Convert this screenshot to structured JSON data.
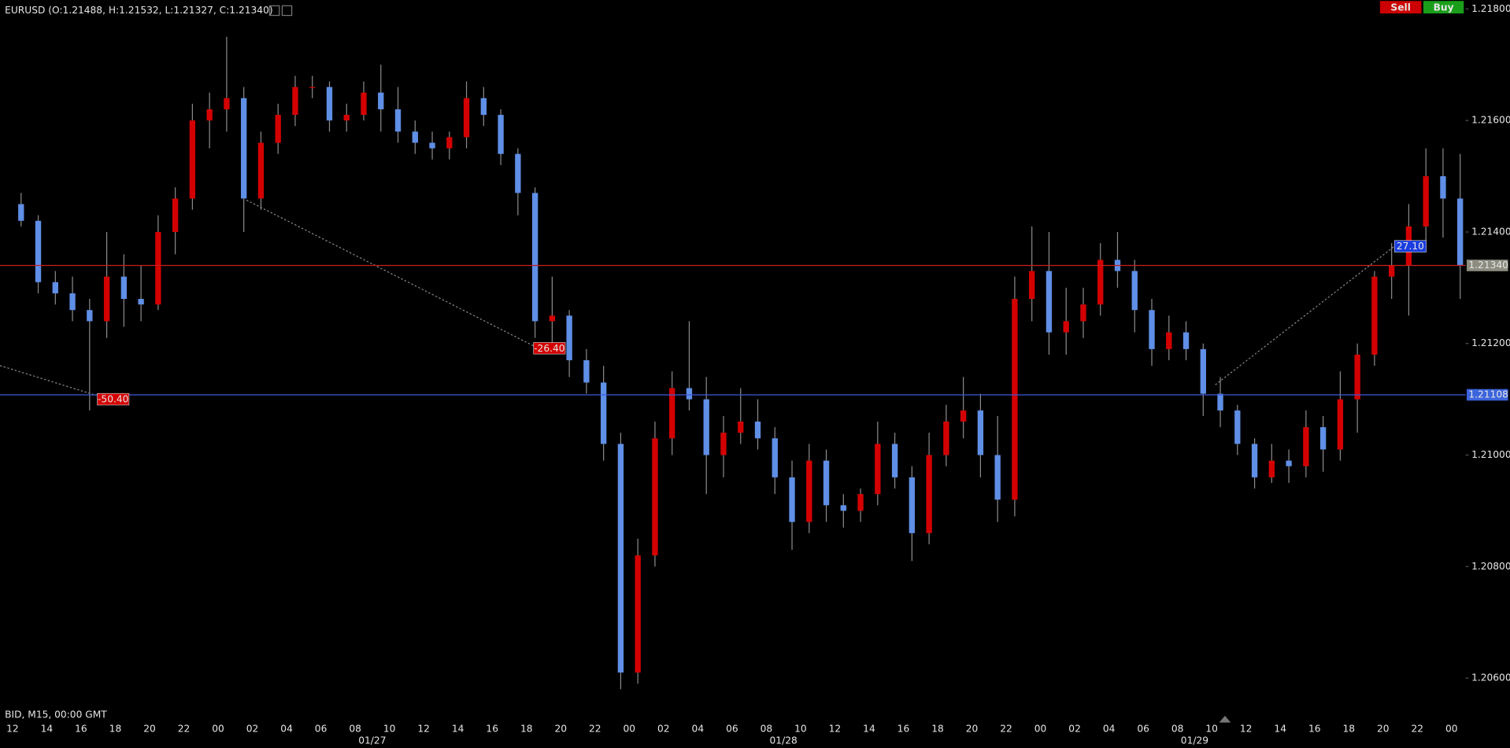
{
  "header": {
    "symbol_info": "EURUSD (O:1.21488, H:1.21532, L:1.21327, C:1.21340)",
    "sell": "Sell",
    "buy": "Buy"
  },
  "footer_info": "BID, M15, 00:00 GMT",
  "chart_data": {
    "type": "candlestick",
    "up_color": "#d40000",
    "down_color": "#5f8fe6",
    "wick_color": "#8a8a8a",
    "x": [
      "01/26 12:00",
      "01/26 13:00",
      "01/26 14:00",
      "01/26 15:00",
      "01/26 16:00",
      "01/26 17:00",
      "01/26 18:00",
      "01/26 19:00",
      "01/26 20:00",
      "01/26 21:00",
      "01/26 22:00",
      "01/26 23:00",
      "01/27 00:00",
      "01/27 01:00",
      "01/27 02:00",
      "01/27 03:00",
      "01/27 04:00",
      "01/27 05:00",
      "01/27 06:00",
      "01/27 07:00",
      "01/27 08:00",
      "01/27 09:00",
      "01/27 10:00",
      "01/27 11:00",
      "01/27 12:00",
      "01/27 13:00",
      "01/27 14:00",
      "01/27 15:00",
      "01/27 16:00",
      "01/27 17:00",
      "01/27 18:00",
      "01/27 19:00",
      "01/27 20:00",
      "01/27 21:00",
      "01/27 22:00",
      "01/27 23:00",
      "01/28 00:00",
      "01/28 01:00",
      "01/28 02:00",
      "01/28 03:00",
      "01/28 04:00",
      "01/28 05:00",
      "01/28 06:00",
      "01/28 07:00",
      "01/28 08:00",
      "01/28 09:00",
      "01/28 10:00",
      "01/28 11:00",
      "01/28 12:00",
      "01/28 13:00",
      "01/28 14:00",
      "01/28 15:00",
      "01/28 16:00",
      "01/28 17:00",
      "01/28 18:00",
      "01/28 19:00",
      "01/28 20:00",
      "01/28 21:00",
      "01/28 22:00",
      "01/28 23:00",
      "01/29 00:00",
      "01/29 01:00",
      "01/29 02:00",
      "01/29 03:00",
      "01/29 04:00",
      "01/29 05:00",
      "01/29 06:00",
      "01/29 07:00",
      "01/29 08:00",
      "01/29 09:00",
      "01/29 10:00",
      "01/29 11:00",
      "01/29 12:00",
      "01/29 13:00",
      "01/29 14:00",
      "01/29 15:00",
      "01/29 16:00",
      "01/29 17:00",
      "01/29 18:00",
      "01/29 19:00",
      "01/29 20:00",
      "01/29 21:00",
      "01/29 22:00",
      "01/29 23:00",
      "01/30 00:00"
    ],
    "open": [
      1.2145,
      1.2142,
      1.2131,
      1.2129,
      1.2126,
      1.2124,
      1.2132,
      1.2128,
      1.2127,
      1.214,
      1.2146,
      1.216,
      1.2162,
      1.2164,
      1.2146,
      1.2156,
      1.2161,
      1.2166,
      1.2166,
      1.216,
      1.2161,
      1.2165,
      1.2162,
      1.2158,
      1.2156,
      1.2155,
      1.2157,
      1.2164,
      1.2161,
      1.2154,
      1.2147,
      1.2124,
      1.2125,
      1.2117,
      1.2113,
      1.2102,
      1.2061,
      1.2082,
      1.2103,
      1.2112,
      1.211,
      1.21,
      1.2104,
      1.2106,
      1.2103,
      1.2096,
      1.2088,
      1.2099,
      1.2091,
      1.209,
      1.2093,
      1.2102,
      1.2096,
      1.2086,
      1.21,
      1.2106,
      1.2108,
      1.21,
      1.2092,
      1.2128,
      1.2133,
      1.2122,
      1.2124,
      1.2127,
      1.2135,
      1.2133,
      1.2126,
      1.2119,
      1.2122,
      1.2119,
      1.2111,
      1.2108,
      1.2102,
      1.2096,
      1.2099,
      1.2098,
      1.2105,
      1.2101,
      1.211,
      1.2118,
      1.2132,
      1.2134,
      1.2141,
      1.215,
      1.2146
    ],
    "high": [
      1.2147,
      1.2143,
      1.2133,
      1.2132,
      1.2128,
      1.214,
      1.2136,
      1.2134,
      1.2143,
      1.2148,
      1.2163,
      1.2165,
      1.2175,
      1.2166,
      1.2158,
      1.2163,
      1.2168,
      1.2168,
      1.2167,
      1.2163,
      1.2167,
      1.217,
      1.2166,
      1.216,
      1.2158,
      1.2158,
      1.2167,
      1.2166,
      1.2162,
      1.2155,
      1.2148,
      1.2132,
      1.2126,
      1.2119,
      1.2116,
      1.2104,
      1.2085,
      1.2106,
      1.2115,
      1.2124,
      1.2114,
      1.2107,
      1.2112,
      1.211,
      1.2105,
      1.2099,
      1.2102,
      1.2101,
      1.2093,
      1.2094,
      1.2106,
      1.2104,
      1.2098,
      1.2104,
      1.2109,
      1.2114,
      1.2111,
      1.2107,
      1.2132,
      1.2141,
      1.214,
      1.213,
      1.213,
      1.2138,
      1.214,
      1.2135,
      1.2128,
      1.2125,
      1.2124,
      1.212,
      1.2114,
      1.2109,
      1.2103,
      1.2102,
      1.2101,
      1.2108,
      1.2107,
      1.2115,
      1.212,
      1.2133,
      1.2138,
      1.2145,
      1.2155,
      1.2155,
      1.2154
    ],
    "low": [
      1.2141,
      1.2129,
      1.2127,
      1.2124,
      1.2108,
      1.2121,
      1.2123,
      1.2124,
      1.2126,
      1.2136,
      1.2144,
      1.2155,
      1.2158,
      1.214,
      1.2144,
      1.2154,
      1.2159,
      1.2164,
      1.2158,
      1.2158,
      1.216,
      1.2158,
      1.2156,
      1.2154,
      1.2153,
      1.2153,
      1.2155,
      1.2159,
      1.2152,
      1.2143,
      1.2121,
      1.212,
      1.2114,
      1.2111,
      1.2099,
      1.2058,
      1.2059,
      1.208,
      1.21,
      1.2108,
      1.2093,
      1.2096,
      1.2102,
      1.2101,
      1.2093,
      1.2083,
      1.2086,
      1.2088,
      1.2087,
      1.2088,
      1.2091,
      1.2094,
      1.2081,
      1.2084,
      1.2098,
      1.2103,
      1.2096,
      1.2088,
      1.2089,
      1.2124,
      1.2118,
      1.2118,
      1.2121,
      1.2125,
      1.213,
      1.2122,
      1.2116,
      1.2117,
      1.2117,
      1.2107,
      1.2105,
      1.21,
      1.2094,
      1.2095,
      1.2095,
      1.2096,
      1.2097,
      1.2099,
      1.2104,
      1.2116,
      1.2128,
      1.2125,
      1.2138,
      1.2139,
      1.2128
    ],
    "close": [
      1.2142,
      1.2131,
      1.2129,
      1.2126,
      1.2124,
      1.2132,
      1.2128,
      1.2127,
      1.214,
      1.2146,
      1.216,
      1.2162,
      1.2164,
      1.2146,
      1.2156,
      1.2161,
      1.2166,
      1.2166,
      1.216,
      1.2161,
      1.2165,
      1.2162,
      1.2158,
      1.2156,
      1.2155,
      1.2157,
      1.2164,
      1.2161,
      1.2154,
      1.2147,
      1.2124,
      1.2125,
      1.2117,
      1.2113,
      1.2102,
      1.2061,
      1.2082,
      1.2103,
      1.2112,
      1.211,
      1.21,
      1.2104,
      1.2106,
      1.2103,
      1.2096,
      1.2088,
      1.2099,
      1.2091,
      1.209,
      1.2093,
      1.2102,
      1.2096,
      1.2086,
      1.21,
      1.2106,
      1.2108,
      1.21,
      1.2092,
      1.2128,
      1.2133,
      1.2122,
      1.2124,
      1.2127,
      1.2135,
      1.2133,
      1.2126,
      1.2119,
      1.2122,
      1.2119,
      1.2111,
      1.2108,
      1.2102,
      1.2096,
      1.2099,
      1.2098,
      1.2105,
      1.2101,
      1.211,
      1.2118,
      1.2132,
      1.2134,
      1.2141,
      1.215,
      1.2146,
      1.2134
    ],
    "ylim": [
      1.20548,
      1.21816
    ],
    "yticks": [
      {
        "value": 1.206,
        "label": "1.20600"
      },
      {
        "value": 1.208,
        "label": "1.20800"
      },
      {
        "value": 1.21,
        "label": "1.21000"
      },
      {
        "value": 1.212,
        "label": "1.21200"
      },
      {
        "value": 1.214,
        "label": "1.21400"
      },
      {
        "value": 1.216,
        "label": "1.21600"
      },
      {
        "value": 1.218,
        "label": "1.21800"
      }
    ],
    "xticks": [
      {
        "value": "01/26 12:00",
        "label": "12"
      },
      {
        "value": "01/26 14:00",
        "label": "14"
      },
      {
        "value": "01/26 16:00",
        "label": "16"
      },
      {
        "value": "01/26 18:00",
        "label": "18"
      },
      {
        "value": "01/26 20:00",
        "label": "20"
      },
      {
        "value": "01/26 22:00",
        "label": "22"
      },
      {
        "value": "01/27 00:00",
        "label": "00"
      },
      {
        "value": "01/27 02:00",
        "label": "02"
      },
      {
        "value": "01/27 04:00",
        "label": "04"
      },
      {
        "value": "01/27 06:00",
        "label": "06"
      },
      {
        "value": "01/27 08:00",
        "label": "08"
      },
      {
        "value": "01/27 10:00",
        "label": "10"
      },
      {
        "value": "01/27 12:00",
        "label": "12"
      },
      {
        "value": "01/27 14:00",
        "label": "14"
      },
      {
        "value": "01/27 16:00",
        "label": "16"
      },
      {
        "value": "01/27 18:00",
        "label": "18"
      },
      {
        "value": "01/27 20:00",
        "label": "20"
      },
      {
        "value": "01/27 22:00",
        "label": "22"
      },
      {
        "value": "01/28 00:00",
        "label": "00"
      },
      {
        "value": "01/28 02:00",
        "label": "02"
      },
      {
        "value": "01/28 04:00",
        "label": "04"
      },
      {
        "value": "01/28 06:00",
        "label": "06"
      },
      {
        "value": "01/28 08:00",
        "label": "08"
      },
      {
        "value": "01/28 10:00",
        "label": "10"
      },
      {
        "value": "01/28 12:00",
        "label": "12"
      },
      {
        "value": "01/28 14:00",
        "label": "14"
      },
      {
        "value": "01/28 16:00",
        "label": "16"
      },
      {
        "value": "01/28 18:00",
        "label": "18"
      },
      {
        "value": "01/28 20:00",
        "label": "20"
      },
      {
        "value": "01/28 22:00",
        "label": "22"
      },
      {
        "value": "01/29 00:00",
        "label": "00"
      },
      {
        "value": "01/29 02:00",
        "label": "02"
      },
      {
        "value": "01/29 04:00",
        "label": "04"
      },
      {
        "value": "01/29 06:00",
        "label": "06"
      },
      {
        "value": "01/29 08:00",
        "label": "08"
      },
      {
        "value": "01/29 10:00",
        "label": "10"
      },
      {
        "value": "01/29 12:00",
        "label": "12"
      },
      {
        "value": "01/29 14:00",
        "label": "14"
      },
      {
        "value": "01/29 16:00",
        "label": "16"
      },
      {
        "value": "01/29 18:00",
        "label": "18"
      },
      {
        "value": "01/29 20:00",
        "label": "20"
      },
      {
        "value": "01/29 22:00",
        "label": "22"
      },
      {
        "value": "01/30 00:00",
        "label": "00"
      }
    ],
    "date_labels": [
      {
        "value": "01/27 09:00",
        "label": "01/27"
      },
      {
        "value": "01/28 09:00",
        "label": "01/28"
      },
      {
        "value": "01/29 09:00",
        "label": "01/29"
      }
    ],
    "hlines": [
      {
        "value": 1.2134,
        "label": "1.21340",
        "color": "#c81e1e",
        "label_color": "#8c8c80"
      },
      {
        "value": 1.21108,
        "label": "1.21108",
        "color": "#3c5adc",
        "label_color": "#3c64dc"
      }
    ],
    "annotations": [
      "-50.40",
      "-26.40",
      "27.10"
    ]
  }
}
